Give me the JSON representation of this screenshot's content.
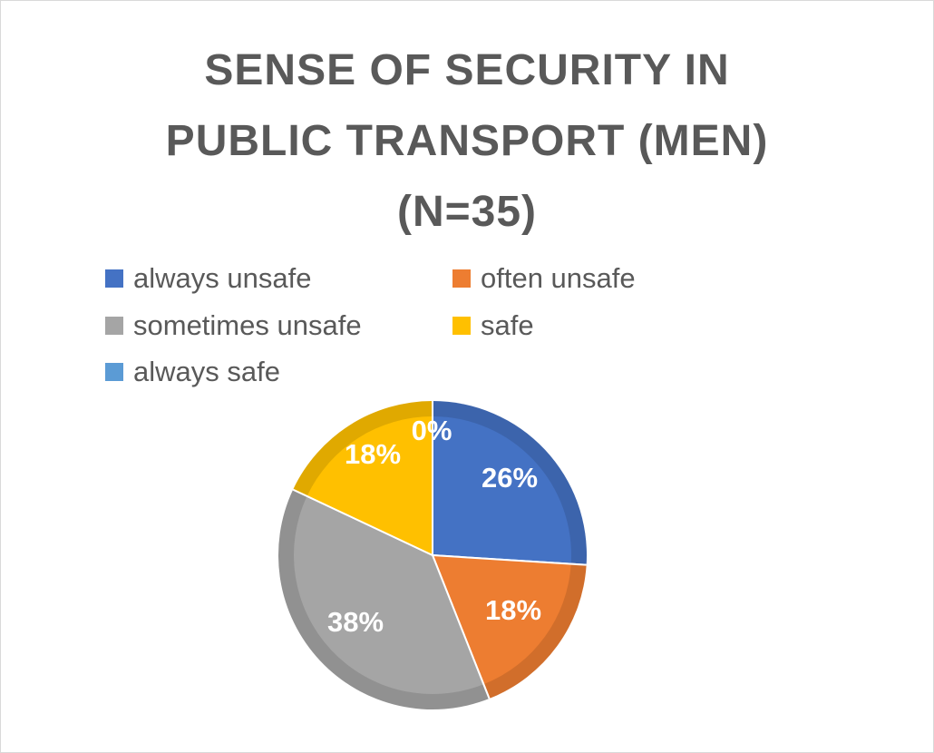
{
  "chart_data": {
    "type": "pie",
    "title": "SENSE OF SECURITY IN PUBLIC TRANSPORT (MEN) (N=35)",
    "title_lines": [
      "SENSE OF SECURITY IN",
      "PUBLIC TRANSPORT (MEN)",
      "(N=35)"
    ],
    "legend_position": "top",
    "slices": [
      {
        "label": "always unsafe",
        "value": 26,
        "display": "26%",
        "color": "#4472C4"
      },
      {
        "label": "often unsafe",
        "value": 18,
        "display": "18%",
        "color": "#ED7D31"
      },
      {
        "label": "sometimes unsafe",
        "value": 38,
        "display": "38%",
        "color": "#A5A5A5"
      },
      {
        "label": "safe",
        "value": 18,
        "display": "18%",
        "color": "#FFC000"
      },
      {
        "label": "always safe",
        "value": 0,
        "display": "0%",
        "color": "#5B9BD5"
      }
    ]
  }
}
